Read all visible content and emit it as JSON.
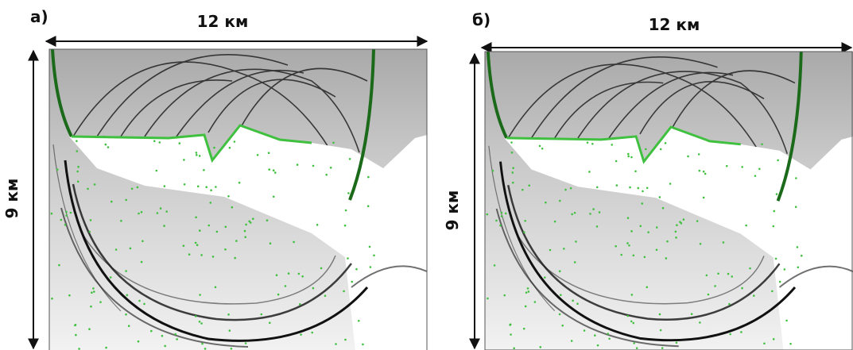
{
  "panels": [
    {
      "label": "а)",
      "width_label": "12 км",
      "height_label": "9 км"
    },
    {
      "label": "б)",
      "width_label": "12 км",
      "height_label": "9 км"
    }
  ]
}
